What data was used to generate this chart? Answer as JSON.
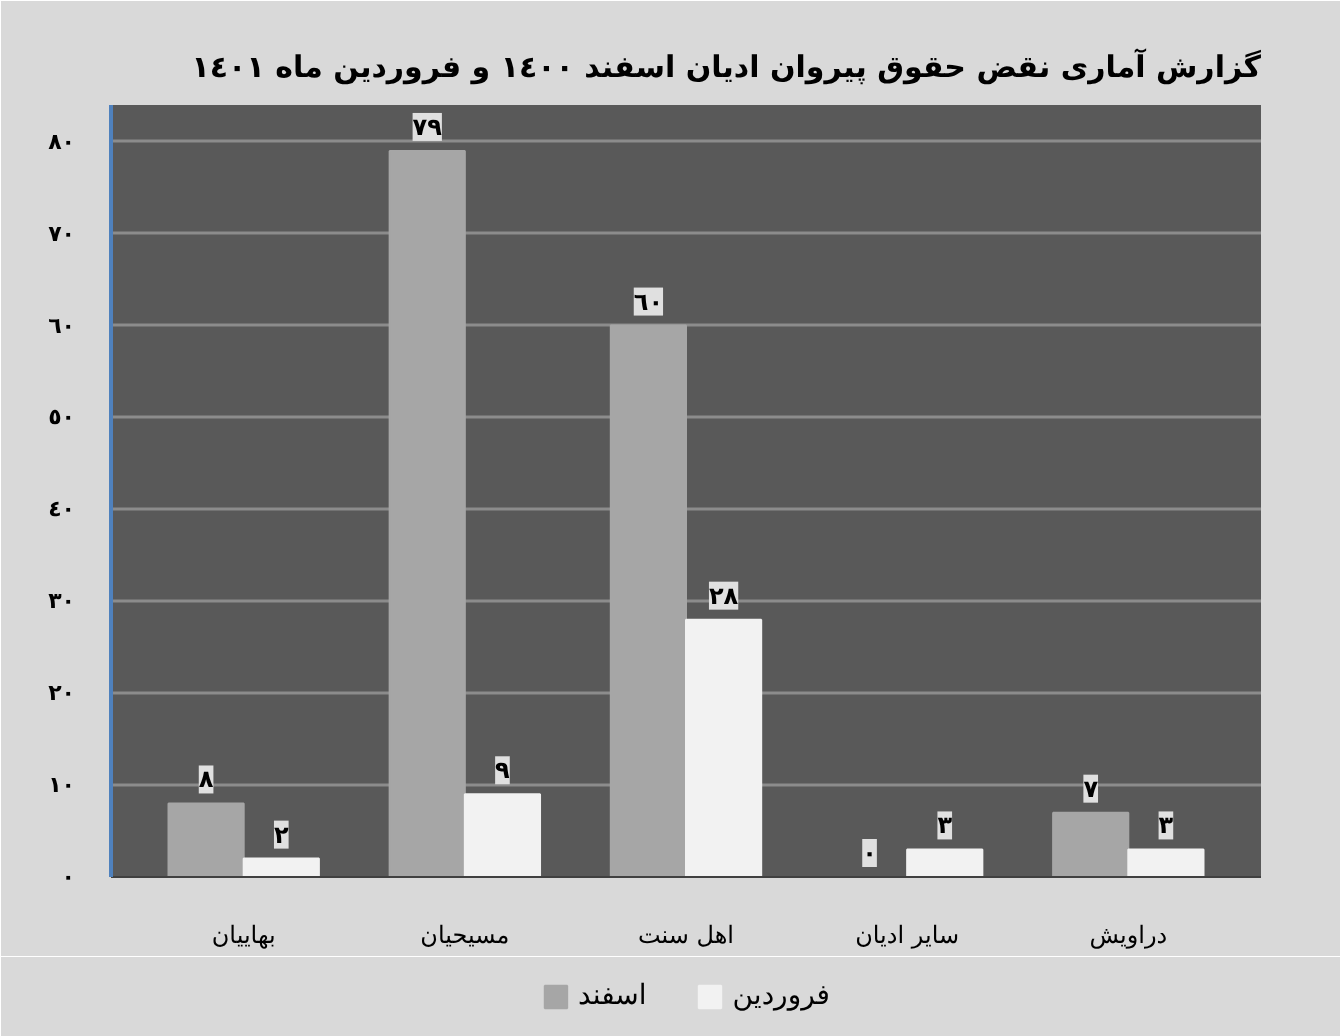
{
  "chart_data": {
    "type": "bar",
    "title": "گزارش آماری نقض حقوق پیروان ادیان اسفند ١٤٠٠ و فروردین ماه ١٤٠١",
    "categories": [
      "بهاییان",
      "مسیحیان",
      "اهل سنت",
      "سایر ادیان",
      "دراویش"
    ],
    "series": [
      {
        "name": "اسفند",
        "color": "#a6a6a6",
        "values": [
          8,
          79,
          60,
          0,
          7
        ],
        "value_labels": [
          "٨",
          "٧٩",
          "٦٠",
          "٠",
          "٧"
        ]
      },
      {
        "name": "فروردین",
        "color": "#f2f2f2",
        "values": [
          2,
          9,
          28,
          3,
          3
        ],
        "value_labels": [
          "٢",
          "٩",
          "٢٨",
          "٣",
          "٣"
        ]
      }
    ],
    "ylim": [
      0,
      84
    ],
    "yticks": [
      {
        "value": 0,
        "label": "٠"
      },
      {
        "value": 10,
        "label": "١٠"
      },
      {
        "value": 20,
        "label": "٢٠"
      },
      {
        "value": 30,
        "label": "٣٠"
      },
      {
        "value": 40,
        "label": "٤٠"
      },
      {
        "value": 50,
        "label": "٥٠"
      },
      {
        "value": 60,
        "label": "٦٠"
      },
      {
        "value": 70,
        "label": "٧٠"
      },
      {
        "value": 80,
        "label": "٨٠"
      }
    ],
    "grid": "y",
    "legend": "bottom"
  }
}
